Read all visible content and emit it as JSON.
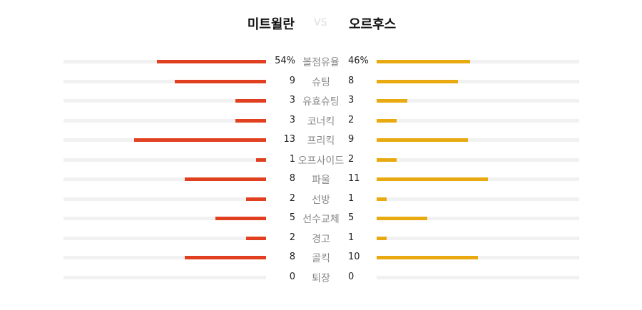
{
  "home_team": "미트윌란",
  "vs": "VS",
  "away_team": "오르후스",
  "colors": {
    "home": "#e0401f",
    "away": "#e8aa10",
    "track": "#f1f1f1"
  },
  "stats": [
    {
      "label": "볼점유율",
      "home": "54%",
      "away": "46%",
      "home_fill": 0.54,
      "away_fill": 0.46
    },
    {
      "label": "슈팅",
      "home": "9",
      "away": "8",
      "home_fill": 0.45,
      "away_fill": 0.4
    },
    {
      "label": "유효슈팅",
      "home": "3",
      "away": "3",
      "home_fill": 0.15,
      "away_fill": 0.15
    },
    {
      "label": "코너킥",
      "home": "3",
      "away": "2",
      "home_fill": 0.15,
      "away_fill": 0.1
    },
    {
      "label": "프리킥",
      "home": "13",
      "away": "9",
      "home_fill": 0.65,
      "away_fill": 0.45
    },
    {
      "label": "오프사이드",
      "home": "1",
      "away": "2",
      "home_fill": 0.05,
      "away_fill": 0.1
    },
    {
      "label": "파울",
      "home": "8",
      "away": "11",
      "home_fill": 0.4,
      "away_fill": 0.55
    },
    {
      "label": "선방",
      "home": "2",
      "away": "1",
      "home_fill": 0.1,
      "away_fill": 0.05
    },
    {
      "label": "선수교체",
      "home": "5",
      "away": "5",
      "home_fill": 0.25,
      "away_fill": 0.25
    },
    {
      "label": "경고",
      "home": "2",
      "away": "1",
      "home_fill": 0.1,
      "away_fill": 0.05
    },
    {
      "label": "골킥",
      "home": "8",
      "away": "10",
      "home_fill": 0.4,
      "away_fill": 0.5
    },
    {
      "label": "퇴장",
      "home": "0",
      "away": "0",
      "home_fill": 0,
      "away_fill": 0
    }
  ]
}
